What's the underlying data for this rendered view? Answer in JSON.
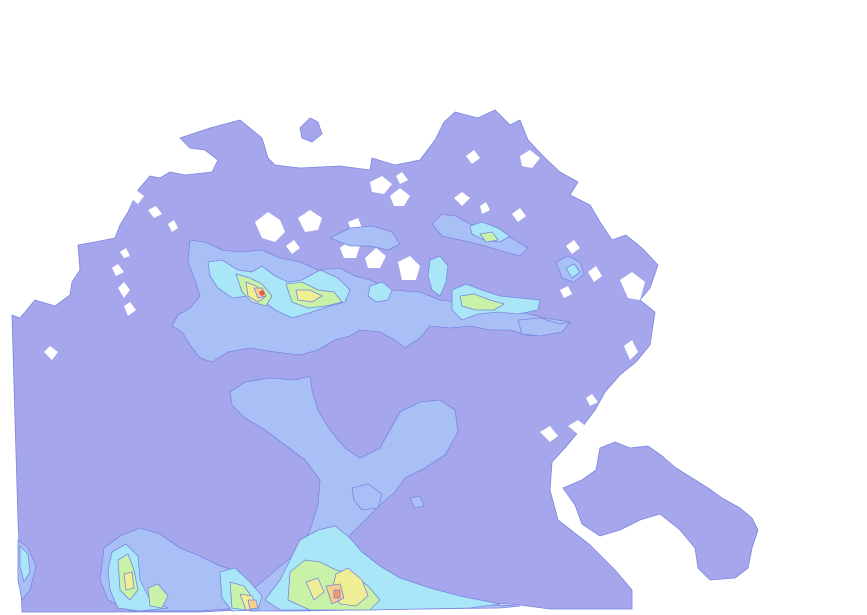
{
  "map": {
    "type": "contour-density-map",
    "colors": {
      "background": "#ffffff",
      "level_1": "#a6a6ec",
      "level_2": "#a9c0f7",
      "level_3": "#a8e6f8",
      "level_4": "#c8f2a8",
      "level_5": "#f0ee95",
      "level_6": "#f6cf8c",
      "level_7": "#f29a6e",
      "peak": "#e8584b",
      "contour_line": "#7a86e0"
    }
  }
}
